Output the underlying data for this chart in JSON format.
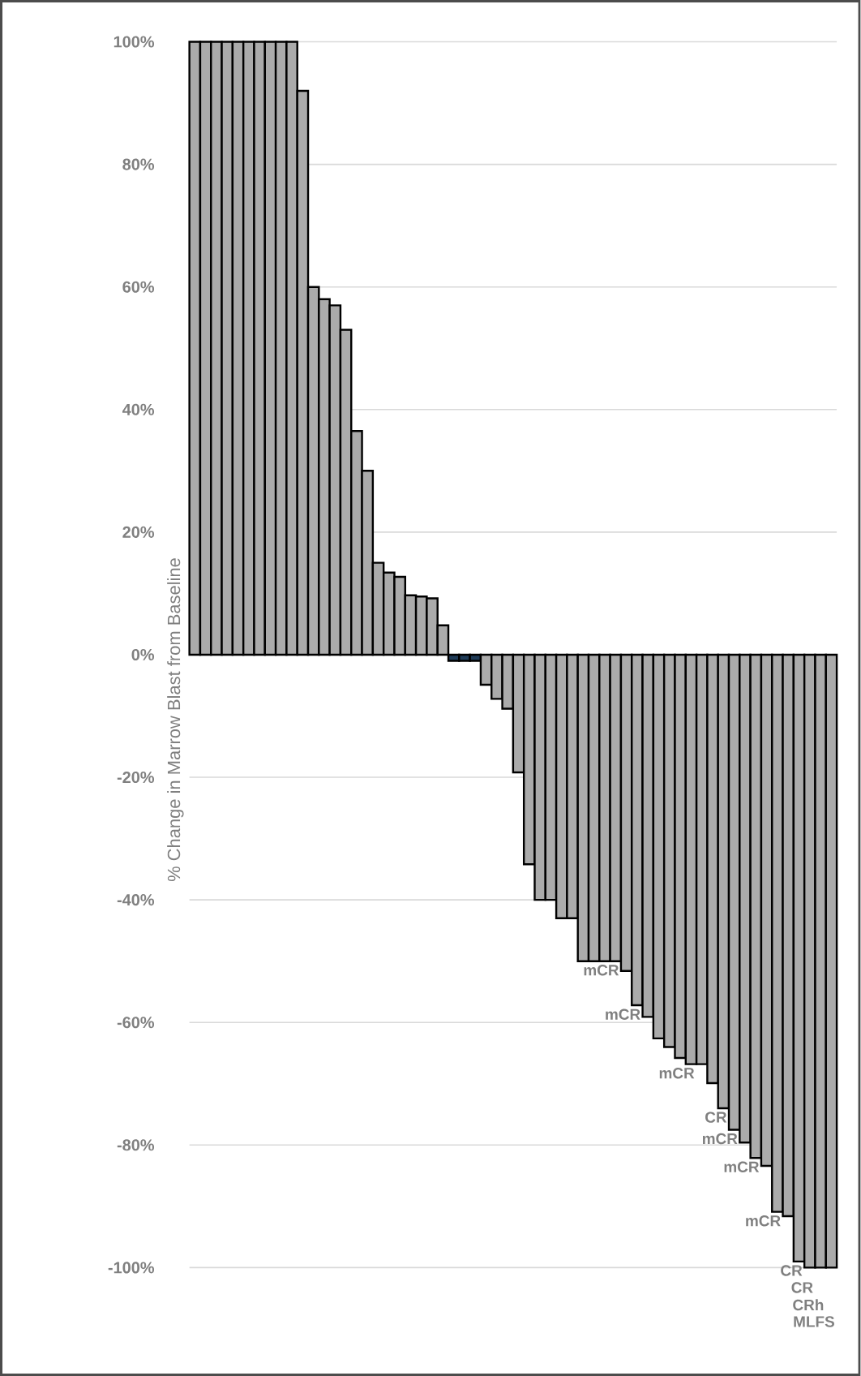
{
  "chart_data": {
    "type": "bar",
    "ylabel": "% Change in Marrow Blast from Baseline",
    "categories": [
      null,
      null,
      null,
      null,
      null,
      null,
      null,
      null,
      null,
      null,
      null,
      null,
      null,
      null,
      null,
      null,
      null,
      null,
      null,
      null,
      null,
      null,
      null,
      null,
      null,
      null,
      null,
      null,
      null,
      null,
      null,
      null,
      null,
      null,
      null,
      null,
      null,
      null,
      null,
      null,
      null,
      null,
      null,
      null,
      null,
      null,
      null,
      null,
      null,
      null,
      null,
      null,
      null,
      null,
      null,
      null,
      null,
      null,
      null,
      null
    ],
    "values": [
      100,
      100,
      100,
      100,
      100,
      100,
      100,
      100,
      100,
      100,
      92,
      60,
      58,
      57,
      53,
      36.5,
      30,
      15,
      13.4,
      12.7,
      9.7,
      9.5,
      9.2,
      4.8,
      -1,
      -1,
      -1,
      -4.9,
      -7.2,
      -8.8,
      -19.2,
      -34.2,
      -40,
      -40,
      -43,
      -43,
      -50,
      -50,
      -50,
      -50,
      -51.6,
      -57.2,
      -59.1,
      -62.6,
      -64,
      -65.8,
      -66.8,
      -66.8,
      -69.9,
      -74,
      -77.5,
      -79.6,
      -82.1,
      -83.4,
      -90.9,
      -91.6,
      -99,
      -100,
      -100,
      -100
    ],
    "colors": [
      "#ababab",
      "#ababab",
      "#ababab",
      "#ababab",
      "#ababab",
      "#ababab",
      "#ababab",
      "#ababab",
      "#ababab",
      "#ababab",
      "#ababab",
      "#ababab",
      "#ababab",
      "#ababab",
      "#ababab",
      "#ababab",
      "#ababab",
      "#ababab",
      "#ababab",
      "#ababab",
      "#ababab",
      "#ababab",
      "#ababab",
      "#ababab",
      "#1f3b57",
      "#1f3b57",
      "#1f3b57",
      "#ababab",
      "#ababab",
      "#ababab",
      "#ababab",
      "#ababab",
      "#ababab",
      "#ababab",
      "#ababab",
      "#ababab",
      "#ababab",
      "#ababab",
      "#ababab",
      "#ababab",
      "#ababab",
      "#ababab",
      "#ababab",
      "#ababab",
      "#ababab",
      "#ababab",
      "#ababab",
      "#ababab",
      "#ababab",
      "#ababab",
      "#ababab",
      "#ababab",
      "#ababab",
      "#ababab",
      "#ababab",
      "#ababab",
      "#ababab",
      "#ababab",
      "#ababab",
      "#ababab"
    ],
    "value_labels": [
      null,
      null,
      null,
      null,
      null,
      null,
      null,
      null,
      null,
      null,
      null,
      null,
      null,
      null,
      null,
      null,
      null,
      null,
      null,
      null,
      null,
      null,
      null,
      null,
      null,
      null,
      null,
      null,
      null,
      null,
      null,
      null,
      null,
      null,
      null,
      null,
      null,
      null,
      null,
      "mCR",
      null,
      "mCR",
      null,
      null,
      null,
      null,
      "mCR",
      null,
      null,
      "CR",
      "mCR",
      null,
      "mCR",
      null,
      "mCR",
      null,
      "CR",
      "CR",
      "CRh",
      "MLFS"
    ],
    "ylim": [
      -100,
      100
    ],
    "yticks": [
      {
        "value": -100,
        "label": "-100%"
      },
      {
        "value": -80,
        "label": "-80%"
      },
      {
        "value": -60,
        "label": "-60%"
      },
      {
        "value": -40,
        "label": "-40%"
      },
      {
        "value": -20,
        "label": "-20%"
      },
      {
        "value": 0,
        "label": "0%"
      },
      {
        "value": 20,
        "label": "20%"
      },
      {
        "value": 40,
        "label": "40%"
      },
      {
        "value": 60,
        "label": "60%"
      },
      {
        "value": 80,
        "label": "80%"
      },
      {
        "value": 100,
        "label": "100%"
      }
    ],
    "grid": "y"
  }
}
